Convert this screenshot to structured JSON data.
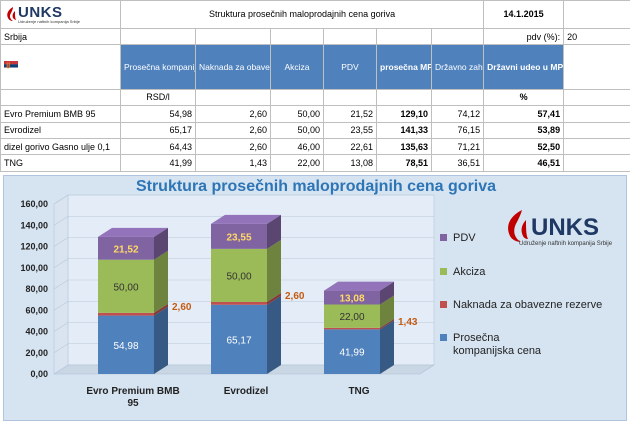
{
  "header": {
    "title": "Struktura prosečnih maloprodajnih cena goriva",
    "date": "14.1.2015",
    "country": "Srbija",
    "pdv_label": "pdv (%):",
    "pdv_value": "20"
  },
  "logo": {
    "name": "UNKS",
    "subtitle": "Udruženje naftnih kompanija Srbije"
  },
  "table": {
    "columns": [
      "Prosečna kompanijska cena",
      "Naknada za obavezne rezerve",
      "Akciza",
      "PDV",
      "prosečna MPC",
      "Državno zahvatanje",
      "Državni udeo u MPC"
    ],
    "unit_left": "RSD/l",
    "unit_right": "%",
    "rows": [
      {
        "name": "Evro Premium BMB 95",
        "values": [
          "54,98",
          "2,60",
          "50,00",
          "21,52",
          "129,10",
          "74,12",
          "57,41"
        ]
      },
      {
        "name": "Evrodizel",
        "values": [
          "65,17",
          "2,60",
          "50,00",
          "23,55",
          "141,33",
          "76,15",
          "53,89"
        ]
      },
      {
        "name": "dizel gorivo Gasno ulje 0,1",
        "values": [
          "64,43",
          "2,60",
          "46,00",
          "22,61",
          "135,63",
          "71,21",
          "52,50"
        ]
      },
      {
        "name": "TNG",
        "values": [
          "41,99",
          "1,43",
          "22,00",
          "13,08",
          "78,51",
          "36,51",
          "46,51"
        ]
      }
    ]
  },
  "colors": {
    "header_blue": "#4f81bd",
    "prosecna": "#4f81bd",
    "naknada": "#c0504d",
    "akciza": "#9bbb59",
    "pdv": "#8064a2",
    "title_blue": "#2e75b6",
    "logo_red": "#c00000",
    "logo_navy": "#1f3864"
  },
  "chart_data": {
    "type": "bar",
    "stacked": true,
    "title": "Struktura prosečnih maloprodajnih cena goriva",
    "categories": [
      "Evro Premium BMB 95",
      "Evrodizel",
      "TNG"
    ],
    "series": [
      {
        "name": "Prosečna kompanijska cena",
        "values": [
          54.98,
          65.17,
          41.99
        ],
        "labels": [
          "54,98",
          "65,17",
          "41,99"
        ]
      },
      {
        "name": "Naknada za obavezne rezerve",
        "values": [
          2.6,
          2.6,
          1.43
        ],
        "labels": [
          "2,60",
          "2,60",
          "1,43"
        ]
      },
      {
        "name": "Akciza",
        "values": [
          50.0,
          50.0,
          22.0
        ],
        "labels": [
          "50,00",
          "50,00",
          "22,00"
        ]
      },
      {
        "name": "PDV",
        "values": [
          21.52,
          23.55,
          13.08
        ],
        "labels": [
          "21,52",
          "23,55",
          "13,08"
        ]
      }
    ],
    "ylim": [
      0,
      160
    ],
    "yticks": [
      "0,00",
      "20,00",
      "40,00",
      "60,00",
      "80,00",
      "100,00",
      "120,00",
      "140,00",
      "160,00"
    ],
    "legend": [
      "PDV",
      "Akciza",
      "Naknada za obavezne rezerve",
      "Prosečna kompanijska cena"
    ],
    "legend_position": "right"
  }
}
